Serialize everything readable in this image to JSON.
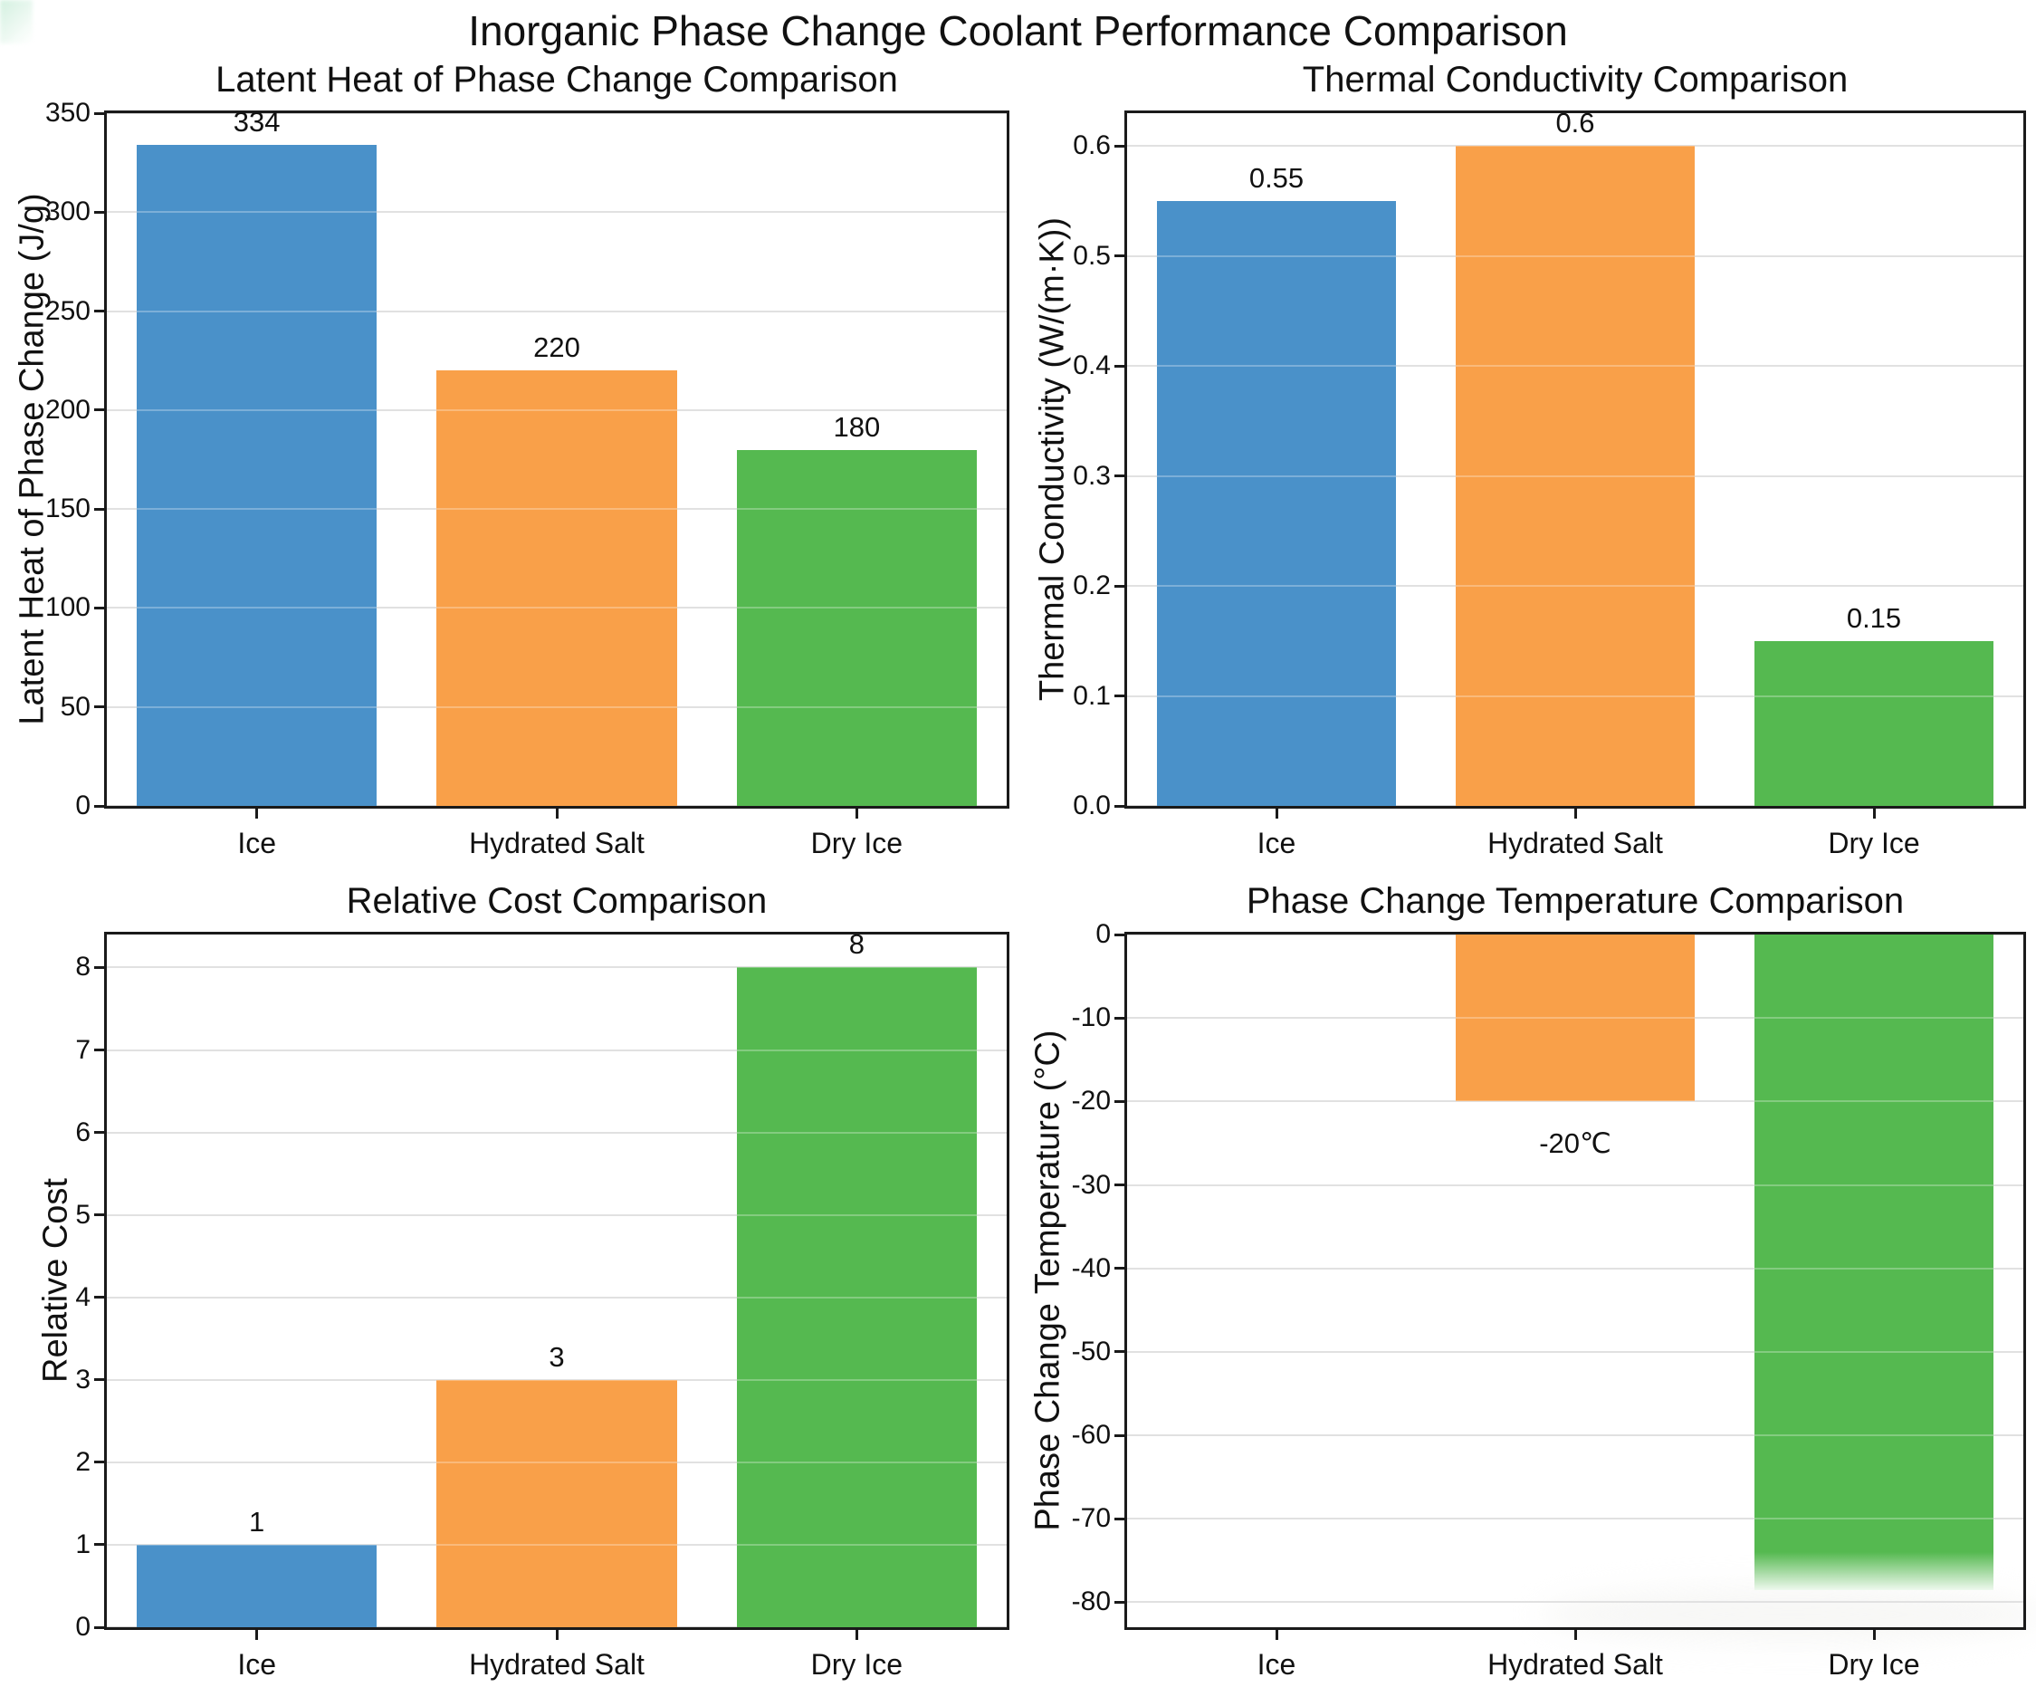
{
  "page": {
    "title": "Inorganic Phase Change Coolant Performance Comparison"
  },
  "colors": {
    "bar_ice": "#4a91c9",
    "bar_hydrated_salt": "#f9a049",
    "bar_dry_ice": "#55b950",
    "grid": "#d6d6d6",
    "spine": "#1a1a1a",
    "text": "#111111"
  },
  "chart_data": [
    {
      "id": "latent_heat",
      "type": "bar",
      "title": "Latent Heat of Phase Change Comparison",
      "xlabel": "",
      "ylabel": "Latent Heat of Phase Change (J/g)",
      "categories": [
        "Ice",
        "Hydrated Salt",
        "Dry Ice"
      ],
      "values": [
        334,
        220,
        180
      ],
      "value_labels": [
        "334",
        "220",
        "180"
      ],
      "label_side": "above",
      "ylim": [
        0,
        350
      ],
      "yticks": [
        0,
        50,
        100,
        150,
        200,
        250,
        300,
        350
      ],
      "ytick_labels": [
        "0",
        "50",
        "100",
        "150",
        "200",
        "250",
        "300",
        "350"
      ],
      "grid": true,
      "legend": "none",
      "bar_colors": [
        "#4a91c9",
        "#f9a049",
        "#55b950"
      ]
    },
    {
      "id": "thermal_conductivity",
      "type": "bar",
      "title": "Thermal Conductivity Comparison",
      "xlabel": "",
      "ylabel": "Thermal Conductivity (W/(m·K))",
      "categories": [
        "Ice",
        "Hydrated Salt",
        "Dry Ice"
      ],
      "values": [
        0.55,
        0.6,
        0.15
      ],
      "value_labels": [
        "0.55",
        "0.6",
        "0.15"
      ],
      "label_side": "above",
      "ylim": [
        0,
        0.63
      ],
      "yticks": [
        0,
        0.1,
        0.2,
        0.3,
        0.4,
        0.5,
        0.6
      ],
      "ytick_labels": [
        "0.0",
        "0.1",
        "0.2",
        "0.3",
        "0.4",
        "0.5",
        "0.6"
      ],
      "grid": true,
      "legend": "none",
      "bar_colors": [
        "#4a91c9",
        "#f9a049",
        "#55b950"
      ]
    },
    {
      "id": "relative_cost",
      "type": "bar",
      "title": "Relative Cost Comparison",
      "xlabel": "",
      "ylabel": "Relative Cost",
      "categories": [
        "Ice",
        "Hydrated Salt",
        "Dry Ice"
      ],
      "values": [
        1,
        3,
        8
      ],
      "value_labels": [
        "1",
        "3",
        "8"
      ],
      "label_side": "above",
      "ylim": [
        0,
        8.4
      ],
      "yticks": [
        0,
        1,
        2,
        3,
        4,
        5,
        6,
        7,
        8
      ],
      "ytick_labels": [
        "0",
        "1",
        "2",
        "3",
        "4",
        "5",
        "6",
        "7",
        "8"
      ],
      "grid": true,
      "legend": "none",
      "bar_colors": [
        "#4a91c9",
        "#f9a049",
        "#55b950"
      ]
    },
    {
      "id": "phase_change_temp",
      "type": "bar",
      "title": "Phase Change Temperature Comparison",
      "xlabel": "",
      "ylabel": "Phase Change Temperature (°C)",
      "categories": [
        "Ice",
        "Hydrated Salt",
        "Dry Ice"
      ],
      "values": [
        0,
        -20,
        -78.5
      ],
      "value_labels": [
        "",
        "-20℃",
        ""
      ],
      "label_side": "below",
      "ylim": [
        -83,
        0
      ],
      "yticks": [
        0,
        -10,
        -20,
        -30,
        -40,
        -50,
        -60,
        -70,
        -80
      ],
      "ytick_labels": [
        "0",
        "-10",
        "-20",
        "-30",
        "-40",
        "-50",
        "-60",
        "-70",
        "-80"
      ],
      "grid": true,
      "legend": "none",
      "bar_colors": [
        "#4a91c9",
        "#f9a049",
        "#55b950"
      ]
    }
  ]
}
